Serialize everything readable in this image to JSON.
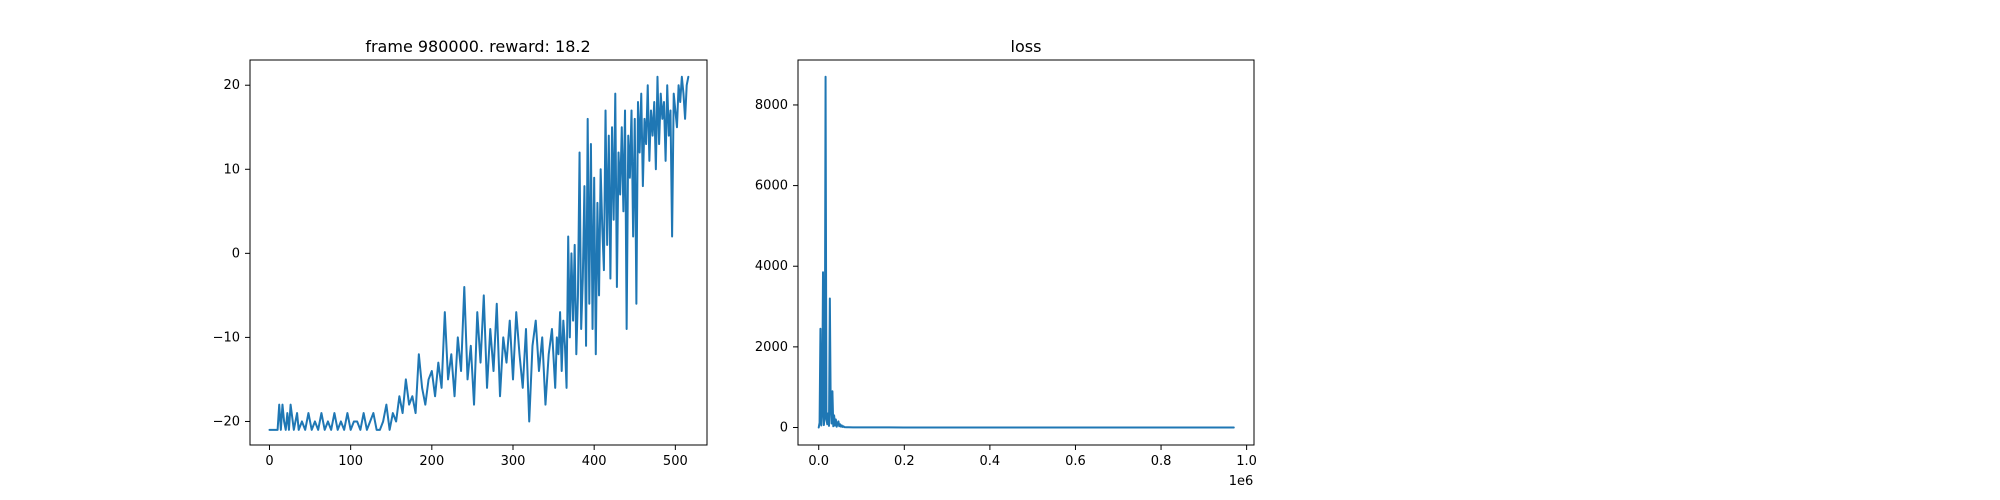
{
  "chart_data": [
    {
      "type": "line",
      "title": "frame 980000. reward: 18.2",
      "xlabel": "",
      "ylabel": "",
      "xlim": [
        -24,
        539
      ],
      "ylim": [
        -22.8,
        23.0
      ],
      "x_ticks": [
        0,
        100,
        200,
        300,
        400,
        500
      ],
      "y_ticks": [
        -20,
        -10,
        0,
        10,
        20
      ],
      "x_tick_labels": [
        "0",
        "100",
        "200",
        "300",
        "400",
        "500"
      ],
      "y_tick_labels": [
        "−20",
        "−10",
        "0",
        "10",
        "20"
      ],
      "grid": false,
      "color": "#1f77b4",
      "series": [
        {
          "x": [
            0,
            10,
            12,
            14,
            16,
            18,
            20,
            22,
            24,
            26,
            30,
            32,
            34,
            36,
            40,
            44,
            48,
            52,
            56,
            60,
            64,
            68,
            72,
            76,
            80,
            84,
            88,
            92,
            96,
            100,
            104,
            108,
            112,
            116,
            120,
            124,
            128,
            132,
            136,
            140,
            144,
            148,
            152,
            156,
            160,
            164,
            168,
            172,
            176,
            180,
            184,
            188,
            192,
            196,
            200,
            204,
            208,
            212,
            216,
            220,
            224,
            228,
            232,
            236,
            240,
            244,
            248,
            252,
            256,
            260,
            264,
            268,
            272,
            276,
            280,
            284,
            288,
            292,
            296,
            300,
            304,
            308,
            312,
            316,
            320,
            324,
            328,
            332,
            336,
            340,
            344,
            348,
            352,
            354,
            356,
            358,
            360,
            362,
            364,
            366,
            368,
            370,
            372,
            374,
            376,
            378,
            380,
            382,
            384,
            386,
            388,
            390,
            392,
            394,
            396,
            398,
            400,
            402,
            404,
            406,
            408,
            410,
            412,
            414,
            416,
            418,
            420,
            422,
            424,
            426,
            428,
            430,
            432,
            434,
            436,
            438,
            440,
            442,
            444,
            446,
            448,
            450,
            452,
            454,
            456,
            458,
            460,
            462,
            464,
            466,
            468,
            470,
            472,
            474,
            476,
            478,
            480,
            482,
            484,
            486,
            488,
            490,
            492,
            494,
            496,
            498,
            500,
            502,
            504,
            506,
            508,
            510,
            512,
            514,
            516
          ],
          "y": [
            -21,
            -21,
            -18,
            -21,
            -18,
            -20,
            -21,
            -19,
            -21,
            -18,
            -21,
            -20,
            -19,
            -21,
            -20,
            -21,
            -19,
            -21,
            -20,
            -21,
            -19,
            -21,
            -20,
            -21,
            -19,
            -21,
            -20,
            -21,
            -19,
            -21,
            -20,
            -20,
            -21,
            -19,
            -21,
            -20,
            -19,
            -21,
            -21,
            -20,
            -18,
            -21,
            -19,
            -20,
            -17,
            -19,
            -15,
            -18,
            -17,
            -19,
            -12,
            -16,
            -18,
            -15,
            -14,
            -17,
            -13,
            -16,
            -7,
            -15,
            -12,
            -17,
            -10,
            -14,
            -4,
            -15,
            -11,
            -18,
            -7,
            -13,
            -5,
            -16,
            -9,
            -14,
            -6,
            -17,
            -10,
            -13,
            -8,
            -15,
            -7,
            -12,
            -16,
            -9,
            -20,
            -11,
            -8,
            -14,
            -10,
            -18,
            -12,
            -9,
            -16,
            -10,
            -12,
            -7,
            -14,
            -8,
            -11,
            -16,
            2,
            -10,
            0,
            -8,
            1,
            -12,
            -5,
            12,
            -9,
            -3,
            8,
            -11,
            16,
            -6,
            13,
            -9,
            9,
            -12,
            6,
            -5,
            10,
            3,
            -2,
            17,
            1,
            14,
            -3,
            15,
            4,
            19,
            -4,
            12,
            7,
            15,
            5,
            17,
            -9,
            14,
            9,
            17,
            2,
            16,
            -6,
            18,
            12,
            19,
            8,
            16,
            13,
            20,
            11,
            17,
            14,
            18,
            10,
            21,
            13,
            19,
            16,
            18,
            11,
            20,
            14,
            17,
            2,
            19,
            17,
            15,
            20,
            18,
            21,
            19,
            16,
            20,
            21
          ]
        }
      ]
    },
    {
      "type": "line",
      "title": "loss",
      "xlabel": "",
      "ylabel": "",
      "x_offset_label": "1e6",
      "xlim": [
        -0.04844,
        1.01724
      ],
      "ylim": [
        -434,
        9115
      ],
      "x_ticks": [
        0.0,
        0.2,
        0.4,
        0.6,
        0.8,
        1.0
      ],
      "y_ticks": [
        0,
        2000,
        4000,
        6000,
        8000
      ],
      "x_tick_labels": [
        "0.0",
        "0.2",
        "0.4",
        "0.6",
        "0.8",
        "1.0"
      ],
      "y_tick_labels": [
        "0",
        "2000",
        "4000",
        "6000",
        "8000"
      ],
      "grid": false,
      "color": "#1f77b4",
      "series": [
        {
          "x": [
            0.0,
            0.002,
            0.004,
            0.006,
            0.008,
            0.01,
            0.012,
            0.014,
            0.016,
            0.018,
            0.02,
            0.022,
            0.024,
            0.026,
            0.028,
            0.03,
            0.032,
            0.034,
            0.036,
            0.038,
            0.04,
            0.042,
            0.044,
            0.046,
            0.048,
            0.05,
            0.052,
            0.054,
            0.056,
            0.058,
            0.06,
            0.065,
            0.07,
            0.08,
            0.1,
            0.15,
            0.2,
            0.3,
            0.4,
            0.5,
            0.6,
            0.7,
            0.8,
            0.9,
            0.97
          ],
          "y": [
            0,
            120,
            2450,
            50,
            400,
            3850,
            60,
            300,
            8700,
            200,
            80,
            350,
            40,
            3200,
            500,
            100,
            900,
            30,
            300,
            50,
            200,
            20,
            100,
            150,
            30,
            80,
            20,
            50,
            15,
            30,
            10,
            5,
            5,
            3,
            2,
            2,
            1,
            1,
            1,
            1,
            1,
            1,
            1,
            1,
            1
          ]
        }
      ]
    }
  ]
}
